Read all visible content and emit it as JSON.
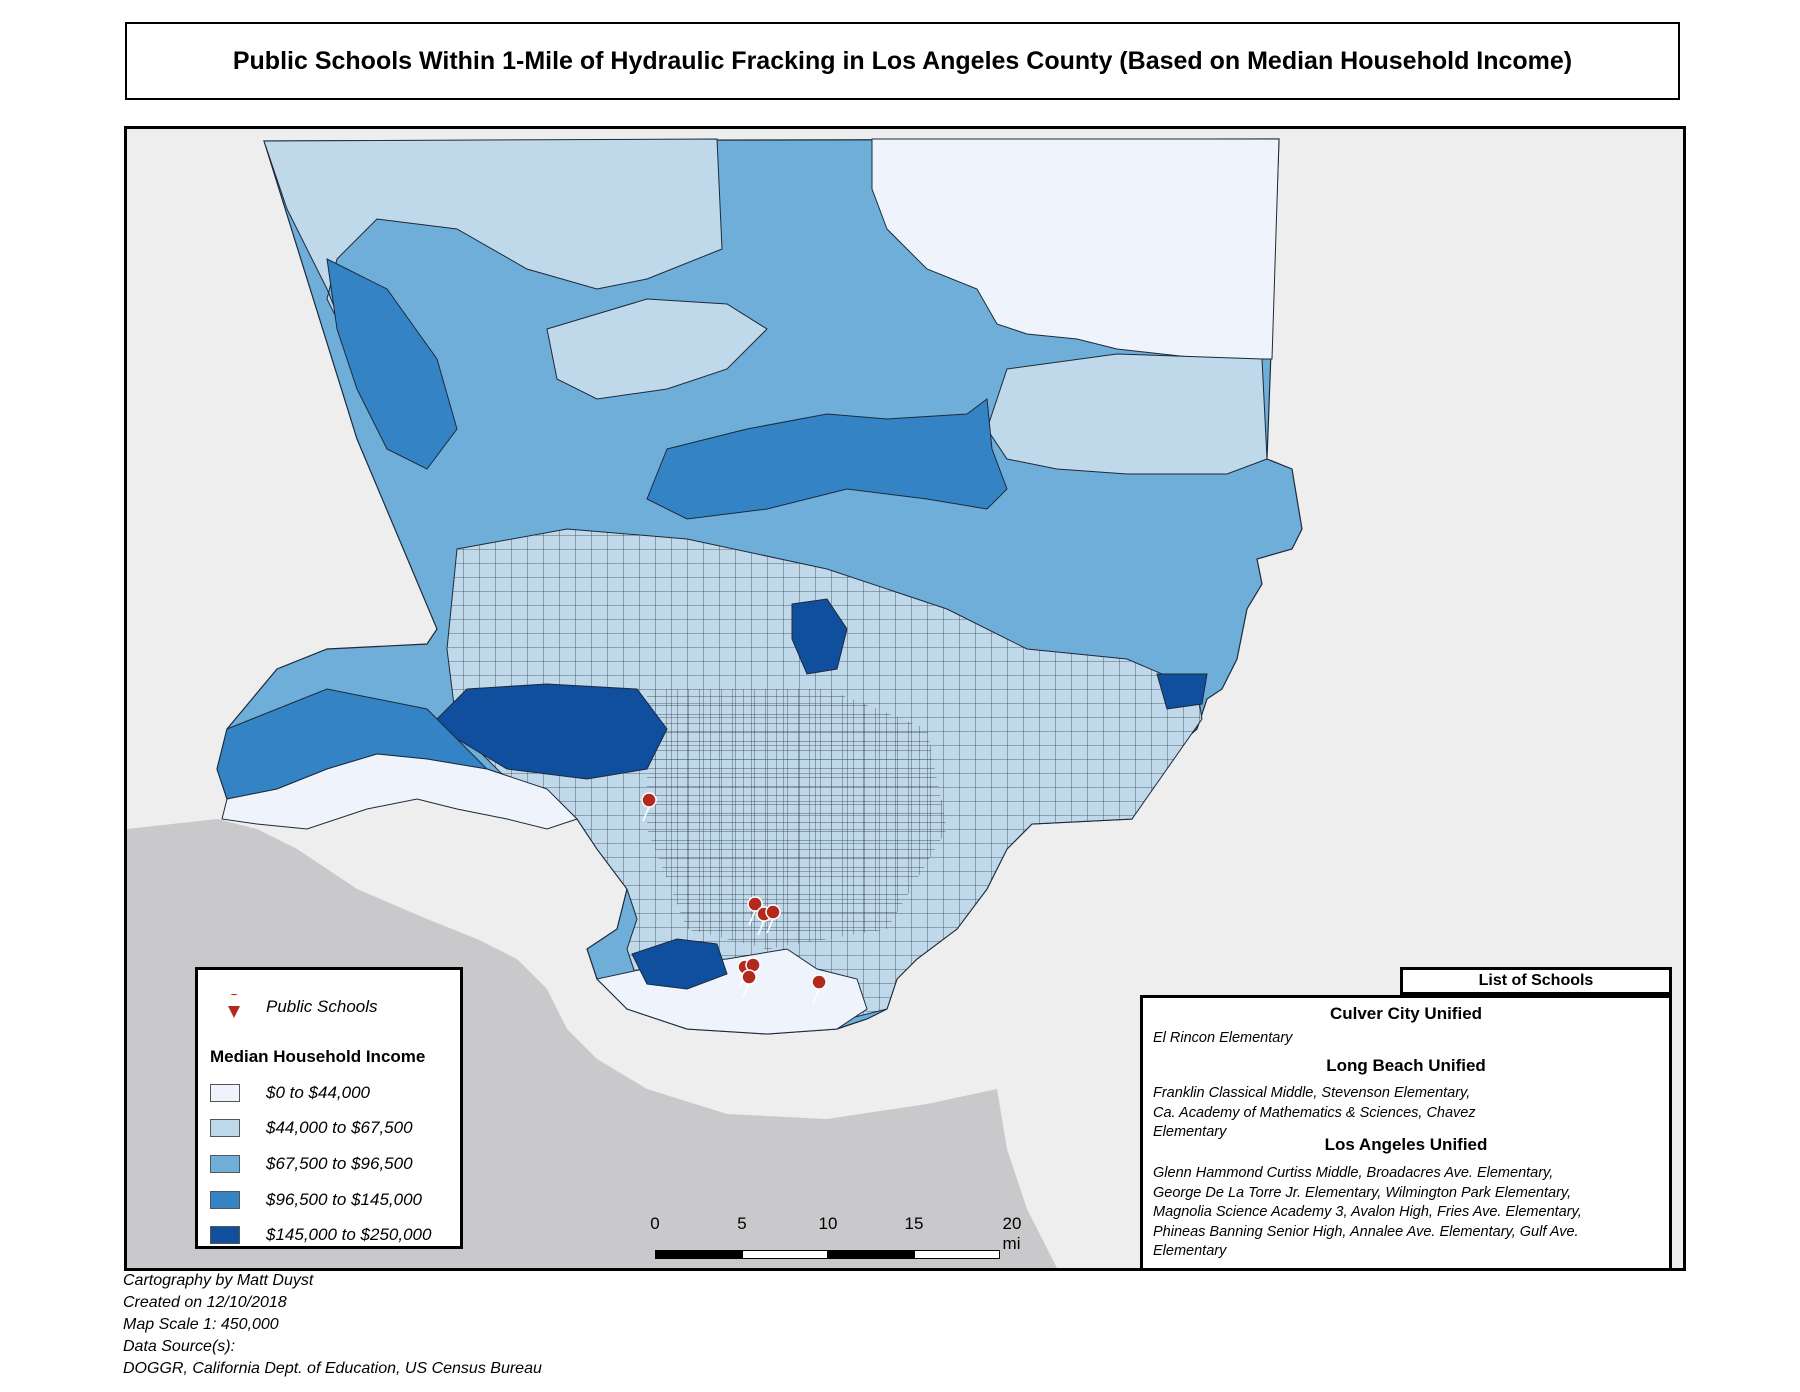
{
  "title": "Public Schools Within 1-Mile of Hydraulic Fracking in Los Angeles County (Based on Median Household Income)",
  "colors": {
    "class1": "#eef3fc",
    "class2": "#c0d9ea",
    "class3": "#6eaed8",
    "class4": "#3484c5",
    "class5": "#0f4f9e",
    "basemap_land": "#eeeeef",
    "basemap_ocean": "#c9c9cb",
    "pin": "#b22a1e"
  },
  "legend": {
    "points_label": "Public Schools",
    "title": "Median Household Income",
    "classes": [
      {
        "label": "$0 to $44,000",
        "color": "#eef3fc",
        "min": 0,
        "max": 44000
      },
      {
        "label": "$44,000 to $67,500",
        "color": "#c0d9ea",
        "min": 44000,
        "max": 67500
      },
      {
        "label": "$67,500 to $96,500",
        "color": "#6eaed8",
        "min": 67500,
        "max": 96500
      },
      {
        "label": "$96,500 to $145,000",
        "color": "#3484c5",
        "min": 96500,
        "max": 145000
      },
      {
        "label": "$145,000 to $250,000",
        "color": "#0f4f9e",
        "min": 145000,
        "max": 250000
      }
    ]
  },
  "scale": {
    "ticks": [
      "0",
      "5",
      "10",
      "15",
      "20 mi"
    ]
  },
  "schools": {
    "header": "List of Schools",
    "districts": [
      {
        "name": "Culver City Unified",
        "lines": [
          "El Rincon Elementary"
        ]
      },
      {
        "name": "Long Beach Unified",
        "lines": [
          "Franklin Classical Middle, Stevenson Elementary,",
          "Ca. Academy of Mathematics & Sciences, Chavez",
          "Elementary"
        ]
      },
      {
        "name": "Los Angeles Unified",
        "lines": [
          "Glenn Hammond Curtiss Middle, Broadacres Ave. Elementary,",
          "George De La Torre Jr. Elementary, Wilmington Park Elementary,",
          "Magnolia Science Academy 3, Avalon High, Fries Ave. Elementary,",
          "Phineas Banning Senior High, Annalee Ave. Elementary, Gulf Ave.",
          "Elementary"
        ]
      }
    ]
  },
  "credits": {
    "line1": "Cartography by Matt Duyst",
    "line2": "Created on 12/10/2018",
    "line3": "Map Scale 1: 450,000",
    "line4": "Data Source(s):",
    "line5": "DOGGR, California Dept. of Education, US Census Bureau"
  }
}
